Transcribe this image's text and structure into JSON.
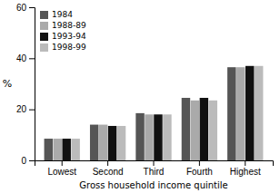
{
  "chart_data": {
    "type": "bar",
    "categories": [
      "Lowest",
      "Second",
      "Third",
      "Fourth",
      "Highest"
    ],
    "series": [
      {
        "name": "1984",
        "color": "#555555",
        "values": [
          8.5,
          14.0,
          18.5,
          24.5,
          36.5
        ]
      },
      {
        "name": "1988-89",
        "color": "#aaaaaa",
        "values": [
          8.5,
          14.0,
          18.0,
          23.5,
          36.5
        ]
      },
      {
        "name": "1993-94",
        "color": "#111111",
        "values": [
          8.5,
          13.5,
          18.0,
          24.5,
          37.0
        ]
      },
      {
        "name": "1998-99",
        "color": "#bbbbbb",
        "values": [
          8.5,
          13.5,
          18.0,
          23.5,
          37.0
        ]
      }
    ],
    "x_label": "Gross household income quintile",
    "y_label": "%",
    "ylim": [
      0,
      60
    ],
    "yticks": [
      0,
      20,
      40,
      60
    ],
    "legend": "upper left"
  }
}
